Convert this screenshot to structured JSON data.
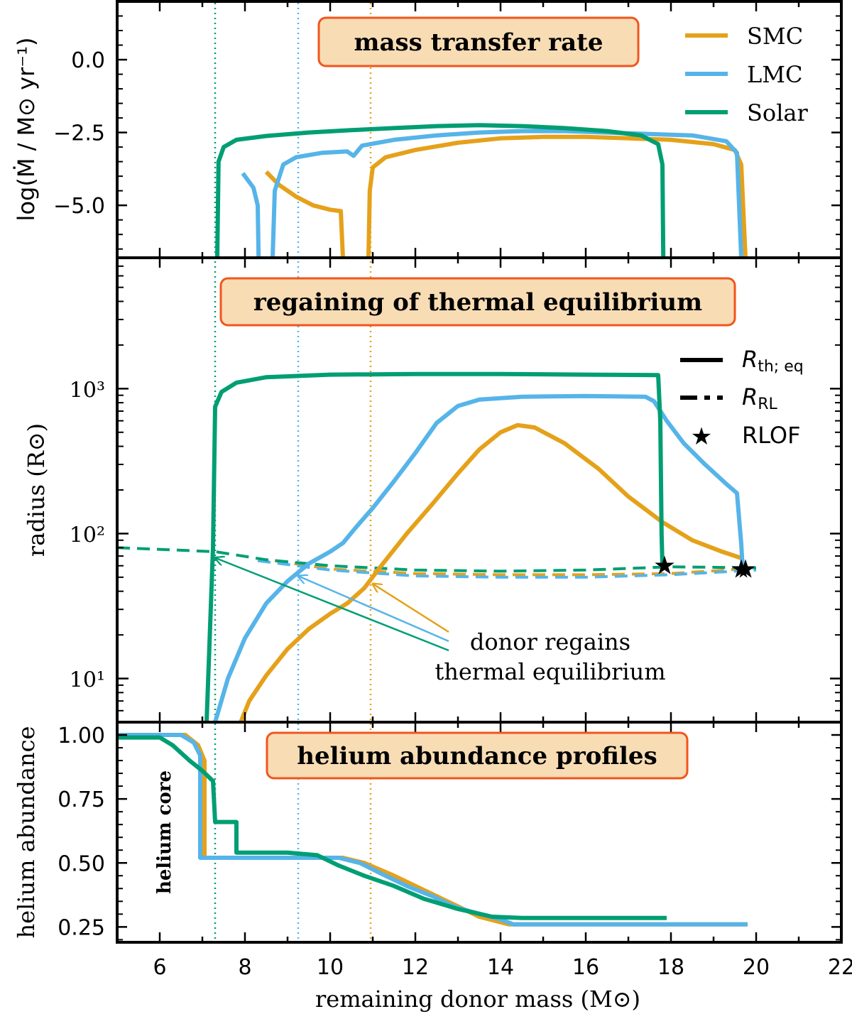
{
  "colors": {
    "SMC": "#e5a11a",
    "LMC": "#56b4e9",
    "Solar": "#009e73"
  },
  "chart_data": [
    {
      "type": "line",
      "panel": "top",
      "title": "mass transfer rate",
      "ylabel": "log(Ṁ / M⊙ yr⁻¹)",
      "xlim": [
        5,
        22
      ],
      "ylim": [
        -6.8,
        2.0
      ],
      "yticks": [
        0.0,
        -2.5,
        -5.0
      ],
      "ytick_labels": [
        "0.0",
        "−2.5",
        "−5.0"
      ],
      "legend": {
        "position": "top-right",
        "entries": [
          "SMC",
          "LMC",
          "Solar"
        ]
      },
      "series": [
        {
          "name": "SMC",
          "segments": [
            [
              [
                10.9,
                -6.8
              ],
              [
                10.93,
                -4.5
              ],
              [
                11.0,
                -3.7
              ],
              [
                11.3,
                -3.35
              ],
              [
                12,
                -3.1
              ],
              [
                13,
                -2.85
              ],
              [
                14,
                -2.7
              ],
              [
                15,
                -2.65
              ],
              [
                16,
                -2.65
              ],
              [
                17,
                -2.7
              ],
              [
                18,
                -2.75
              ],
              [
                19,
                -2.9
              ],
              [
                19.5,
                -3.1
              ],
              [
                19.65,
                -3.6
              ],
              [
                19.75,
                -6.8
              ]
            ],
            [
              [
                8.5,
                -3.85
              ],
              [
                8.8,
                -4.3
              ],
              [
                9.2,
                -4.7
              ],
              [
                9.6,
                -5.0
              ],
              [
                10.0,
                -5.15
              ],
              [
                10.25,
                -5.2
              ],
              [
                10.3,
                -6.8
              ]
            ]
          ]
        },
        {
          "name": "LMC",
          "segments": [
            [
              [
                8.65,
                -6.8
              ],
              [
                8.7,
                -4.5
              ],
              [
                8.9,
                -3.6
              ],
              [
                9.2,
                -3.35
              ],
              [
                9.8,
                -3.2
              ],
              [
                10.4,
                -3.15
              ],
              [
                10.55,
                -3.3
              ],
              [
                10.75,
                -2.95
              ],
              [
                11.5,
                -2.75
              ],
              [
                12.5,
                -2.6
              ],
              [
                13.5,
                -2.5
              ],
              [
                14.5,
                -2.45
              ],
              [
                15.5,
                -2.45
              ],
              [
                16.5,
                -2.5
              ],
              [
                17.5,
                -2.55
              ],
              [
                18.5,
                -2.6
              ],
              [
                19.3,
                -2.8
              ],
              [
                19.55,
                -3.2
              ],
              [
                19.65,
                -6.8
              ]
            ],
            [
              [
                7.95,
                -3.9
              ],
              [
                8.2,
                -4.4
              ],
              [
                8.3,
                -5.0
              ],
              [
                8.32,
                -6.8
              ]
            ]
          ]
        },
        {
          "name": "Solar",
          "segments": [
            [
              [
                7.35,
                -6.8
              ],
              [
                7.38,
                -3.5
              ],
              [
                7.5,
                -3.0
              ],
              [
                7.8,
                -2.75
              ],
              [
                8.5,
                -2.62
              ],
              [
                9.5,
                -2.5
              ],
              [
                10.5,
                -2.42
              ],
              [
                11.5,
                -2.35
              ],
              [
                12.5,
                -2.28
              ],
              [
                13.5,
                -2.25
              ],
              [
                14.5,
                -2.28
              ],
              [
                15.5,
                -2.35
              ],
              [
                16.5,
                -2.45
              ],
              [
                17.3,
                -2.6
              ],
              [
                17.7,
                -2.9
              ],
              [
                17.8,
                -3.6
              ],
              [
                17.82,
                -6.8
              ]
            ]
          ]
        }
      ],
      "vlines": [
        {
          "x": 7.3,
          "series": "Solar"
        },
        {
          "x": 9.25,
          "series": "LMC"
        },
        {
          "x": 10.95,
          "series": "SMC"
        }
      ]
    },
    {
      "type": "line",
      "panel": "middle",
      "title": "regaining of thermal equilibrium",
      "ylabel": "radius (R⊙)",
      "yscale": "log",
      "xlim": [
        5,
        22
      ],
      "ylim": [
        5,
        8000
      ],
      "ytick_labels": [
        "10¹",
        "10²",
        "10³"
      ],
      "legend": {
        "position": "right",
        "entries": [
          "R th; eq",
          "R RL",
          "RLOF"
        ]
      },
      "annotation": {
        "lines": [
          "donor regains",
          "thermal equilibrium"
        ]
      },
      "series": [
        {
          "name": "SMC R_th;eq",
          "style": "solid",
          "points": [
            [
              7.9,
              5
            ],
            [
              8.1,
              7
            ],
            [
              8.5,
              10.5
            ],
            [
              9.0,
              16
            ],
            [
              9.5,
              22
            ],
            [
              10.0,
              28
            ],
            [
              10.4,
              33
            ],
            [
              10.8,
              42
            ],
            [
              11.2,
              60
            ],
            [
              11.8,
              100
            ],
            [
              12.4,
              160
            ],
            [
              13.0,
              260
            ],
            [
              13.5,
              380
            ],
            [
              14.0,
              500
            ],
            [
              14.4,
              560
            ],
            [
              14.8,
              540
            ],
            [
              15.5,
              420
            ],
            [
              16.3,
              280
            ],
            [
              17.0,
              180
            ],
            [
              17.8,
              120
            ],
            [
              18.5,
              90
            ],
            [
              19.2,
              75
            ],
            [
              19.7,
              67
            ]
          ]
        },
        {
          "name": "LMC R_th;eq",
          "style": "solid",
          "points": [
            [
              7.3,
              5
            ],
            [
              7.6,
              10
            ],
            [
              8.0,
              19
            ],
            [
              8.5,
              33
            ],
            [
              9.0,
              47
            ],
            [
              9.5,
              62
            ],
            [
              10.0,
              75
            ],
            [
              10.3,
              86
            ],
            [
              10.6,
              110
            ],
            [
              11.0,
              150
            ],
            [
              11.5,
              230
            ],
            [
              12.0,
              360
            ],
            [
              12.5,
              580
            ],
            [
              13.0,
              760
            ],
            [
              13.5,
              840
            ],
            [
              14.5,
              880
            ],
            [
              16.0,
              890
            ],
            [
              17.4,
              880
            ],
            [
              17.6,
              820
            ],
            [
              17.9,
              600
            ],
            [
              18.3,
              420
            ],
            [
              18.8,
              300
            ],
            [
              19.3,
              220
            ],
            [
              19.55,
              190
            ],
            [
              19.65,
              85
            ],
            [
              19.68,
              60
            ]
          ]
        },
        {
          "name": "Solar R_th;eq",
          "style": "solid",
          "points": [
            [
              7.1,
              5
            ],
            [
              7.25,
              80
            ],
            [
              7.3,
              750
            ],
            [
              7.45,
              950
            ],
            [
              7.8,
              1100
            ],
            [
              8.5,
              1200
            ],
            [
              10,
              1250
            ],
            [
              12,
              1260
            ],
            [
              14,
              1260
            ],
            [
              16,
              1250
            ],
            [
              17.7,
              1240
            ],
            [
              17.75,
              600
            ],
            [
              17.78,
              100
            ],
            [
              17.8,
              60
            ]
          ]
        },
        {
          "name": "SMC R_RL",
          "style": "dashed",
          "points": [
            [
              8.7,
              65
            ],
            [
              10,
              57
            ],
            [
              12,
              53
            ],
            [
              14,
              52
            ],
            [
              16,
              52
            ],
            [
              18,
              53
            ],
            [
              19.7,
              57
            ]
          ]
        },
        {
          "name": "LMC R_RL",
          "style": "dashed",
          "points": [
            [
              8.3,
              65
            ],
            [
              10,
              56
            ],
            [
              12,
              51
            ],
            [
              14,
              50
            ],
            [
              16,
              50
            ],
            [
              18,
              52
            ],
            [
              20,
              56
            ]
          ]
        },
        {
          "name": "Solar R_RL",
          "style": "dashed",
          "points": [
            [
              5,
              80
            ],
            [
              7.3,
              75
            ],
            [
              8.5,
              66
            ],
            [
              10,
              60
            ],
            [
              12,
              56
            ],
            [
              14,
              55
            ],
            [
              16,
              56
            ],
            [
              18,
              59
            ],
            [
              20,
              58
            ]
          ]
        }
      ],
      "rlof_markers": [
        {
          "x": 17.85,
          "y": 60
        },
        {
          "x": 19.65,
          "y": 57
        },
        {
          "x": 19.75,
          "y": 57
        }
      ],
      "arrows": [
        {
          "series": "SMC",
          "target": [
            11.0,
            45
          ]
        },
        {
          "series": "LMC",
          "target": [
            9.25,
            51
          ]
        },
        {
          "series": "Solar",
          "target": [
            7.3,
            68
          ]
        }
      ]
    },
    {
      "type": "line",
      "panel": "bottom",
      "title": "helium abundance profiles",
      "xlabel": "remaining donor mass (M⊙)",
      "ylabel": "helium abundance",
      "xlim": [
        5,
        22
      ],
      "ylim": [
        0.19,
        1.05
      ],
      "xticks": [
        6,
        8,
        10,
        12,
        14,
        16,
        18,
        20,
        22
      ],
      "yticks": [
        0.25,
        0.5,
        0.75,
        1.0
      ],
      "ytick_labels": [
        "0.25",
        "0.50",
        "0.75",
        "1.00"
      ],
      "annotation": "helium core",
      "series": [
        {
          "name": "SMC",
          "points": [
            [
              5,
              1.0
            ],
            [
              6.6,
              1.0
            ],
            [
              6.9,
              0.96
            ],
            [
              7.05,
              0.9
            ],
            [
              7.05,
              0.52
            ],
            [
              10.3,
              0.52
            ],
            [
              10.8,
              0.5
            ],
            [
              11.5,
              0.45
            ],
            [
              12,
              0.41
            ],
            [
              12.5,
              0.37
            ],
            [
              13.0,
              0.33
            ],
            [
              13.5,
              0.29
            ],
            [
              14.2,
              0.26
            ],
            [
              19.8,
              0.26
            ]
          ]
        },
        {
          "name": "LMC",
          "points": [
            [
              5,
              1.0
            ],
            [
              6.5,
              1.0
            ],
            [
              6.8,
              0.97
            ],
            [
              6.95,
              0.92
            ],
            [
              6.95,
              0.52
            ],
            [
              10.2,
              0.52
            ],
            [
              10.7,
              0.5
            ],
            [
              11.3,
              0.45
            ],
            [
              11.8,
              0.41
            ],
            [
              12.4,
              0.37
            ],
            [
              12.9,
              0.33
            ],
            [
              13.3,
              0.31
            ],
            [
              14.0,
              0.28
            ],
            [
              14.3,
              0.26
            ],
            [
              19.8,
              0.26
            ]
          ]
        },
        {
          "name": "Solar",
          "points": [
            [
              5,
              0.99
            ],
            [
              6.0,
              0.99
            ],
            [
              6.3,
              0.96
            ],
            [
              6.7,
              0.9
            ],
            [
              7.0,
              0.86
            ],
            [
              7.25,
              0.82
            ],
            [
              7.3,
              0.66
            ],
            [
              7.8,
              0.66
            ],
            [
              7.8,
              0.54
            ],
            [
              9.0,
              0.54
            ],
            [
              9.7,
              0.53
            ],
            [
              10.2,
              0.49
            ],
            [
              10.8,
              0.45
            ],
            [
              11.5,
              0.41
            ],
            [
              12.2,
              0.36
            ],
            [
              13.0,
              0.32
            ],
            [
              13.8,
              0.29
            ],
            [
              14.5,
              0.285
            ],
            [
              17.9,
              0.285
            ]
          ]
        }
      ]
    }
  ]
}
